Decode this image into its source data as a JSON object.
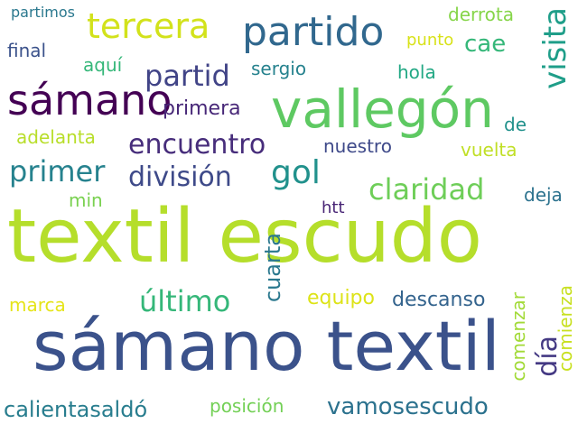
{
  "words": [
    {
      "key": "textil_escudo",
      "text": "textil escudo",
      "color": "#b5de2b"
    },
    {
      "key": "samano_textil",
      "text": "sámano textil",
      "color": "#3b528b"
    },
    {
      "key": "vallegon",
      "text": "vallegón",
      "color": "#5ec962"
    },
    {
      "key": "samano",
      "text": "sámano",
      "color": "#440154"
    },
    {
      "key": "partido",
      "text": "partido",
      "color": "#31688e"
    },
    {
      "key": "tercera",
      "text": "tercera",
      "color": "#d2e21b"
    },
    {
      "key": "visita",
      "text": "visita",
      "color": "#1f9e89"
    },
    {
      "key": "partid",
      "text": "partid",
      "color": "#414487"
    },
    {
      "key": "encuentro",
      "text": "encuentro",
      "color": "#472d7b"
    },
    {
      "key": "primer",
      "text": "primer",
      "color": "#26828e"
    },
    {
      "key": "gol",
      "text": "gol",
      "color": "#21918c"
    },
    {
      "key": "division",
      "text": "división",
      "color": "#3e4a89"
    },
    {
      "key": "claridad",
      "text": "claridad",
      "color": "#6ece58"
    },
    {
      "key": "ultimo",
      "text": "último",
      "color": "#35b779"
    },
    {
      "key": "cuarta",
      "text": "cuarta",
      "color": "#2a788e"
    },
    {
      "key": "dia",
      "text": "día",
      "color": "#443983"
    },
    {
      "key": "vamosescudo",
      "text": "vamosescudo",
      "color": "#2c728e"
    },
    {
      "key": "cae",
      "text": "cae",
      "color": "#35b779"
    },
    {
      "key": "derrota",
      "text": "derrota",
      "color": "#86d549"
    },
    {
      "key": "punto",
      "text": "punto",
      "color": "#d8e219"
    },
    {
      "key": "partimos",
      "text": "partimos",
      "color": "#2a788e"
    },
    {
      "key": "final",
      "text": "final",
      "color": "#3b528b"
    },
    {
      "key": "aqui",
      "text": "aquí",
      "color": "#35b779"
    },
    {
      "key": "sergio",
      "text": "sergio",
      "color": "#26828e"
    },
    {
      "key": "hola",
      "text": "hola",
      "color": "#22a884"
    },
    {
      "key": "primera",
      "text": "primera",
      "color": "#482878"
    },
    {
      "key": "adelanta",
      "text": "adelanta",
      "color": "#b8de29"
    },
    {
      "key": "nuestro",
      "text": "nuestro",
      "color": "#3e4989"
    },
    {
      "key": "de",
      "text": "de",
      "color": "#21918c"
    },
    {
      "key": "vuelta",
      "text": "vuelta",
      "color": "#c0df25"
    },
    {
      "key": "min",
      "text": "min",
      "color": "#7ad151"
    },
    {
      "key": "htt",
      "text": "htt",
      "color": "#482475"
    },
    {
      "key": "deja",
      "text": "deja",
      "color": "#2c728e"
    },
    {
      "key": "marca",
      "text": "marca",
      "color": "#e5e419"
    },
    {
      "key": "equipo",
      "text": "equipo",
      "color": "#dde318"
    },
    {
      "key": "descanso",
      "text": "descanso",
      "color": "#33638d"
    },
    {
      "key": "comenzar",
      "text": "comenzar",
      "color": "#a2da37"
    },
    {
      "key": "comienza",
      "text": "comienza",
      "color": "#c8e020"
    },
    {
      "key": "calientasaldo",
      "text": "calientasaldó",
      "color": "#287d8e"
    },
    {
      "key": "posicion",
      "text": "posición",
      "color": "#73d056"
    }
  ]
}
